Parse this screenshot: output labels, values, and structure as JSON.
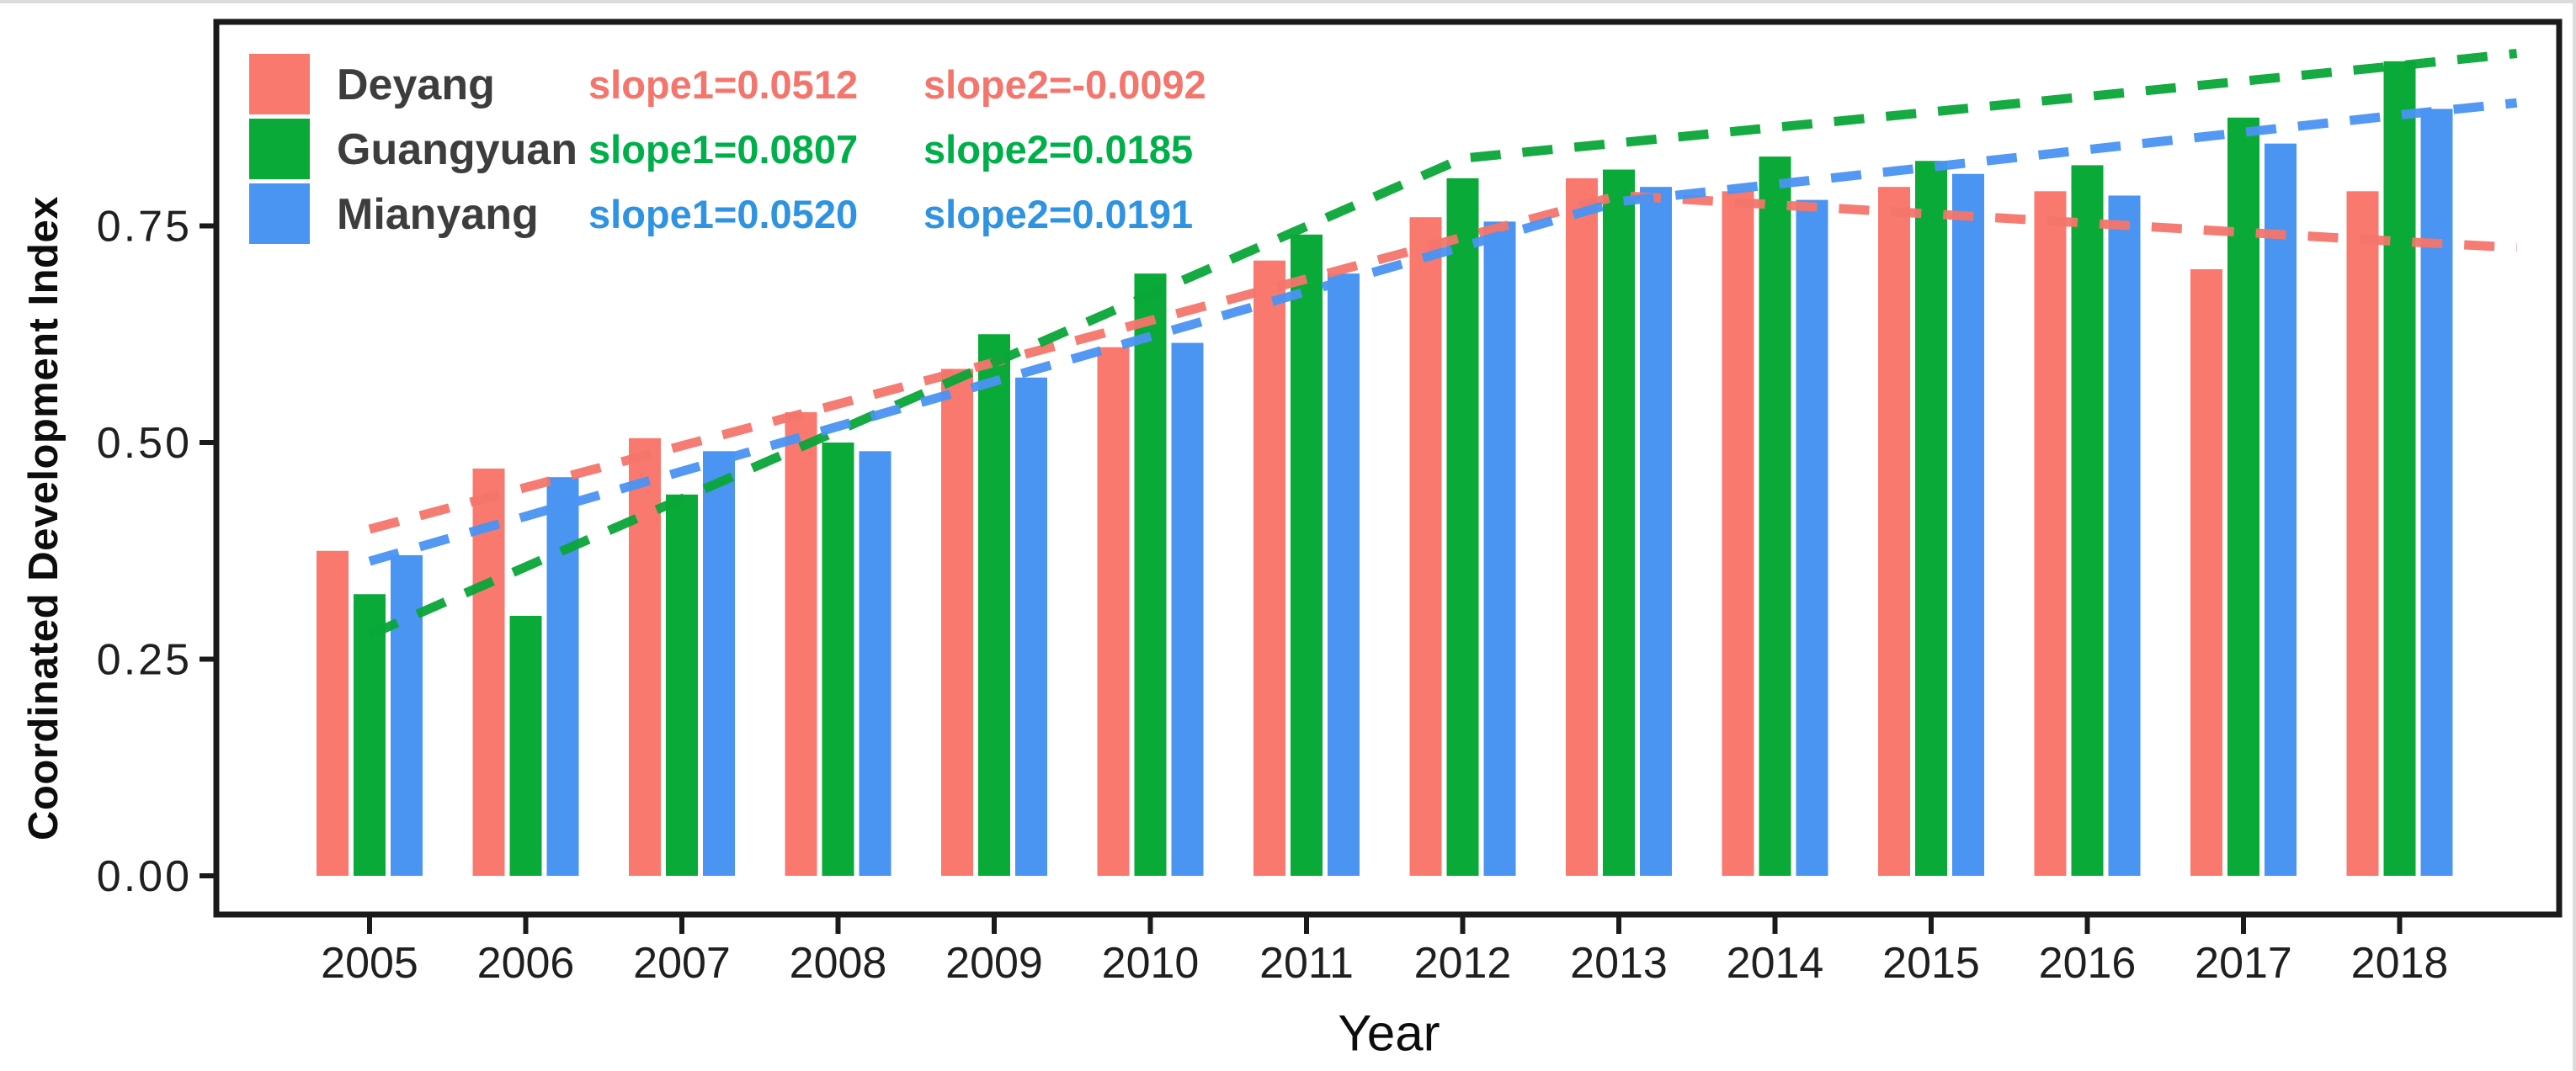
{
  "axes": {
    "y_title": "Coordinated Development Index",
    "x_title": "Year",
    "y_tick_labels": [
      "0.00",
      "0.25",
      "0.50",
      "0.75"
    ],
    "y_tick_values": [
      0,
      0.25,
      0.5,
      0.75
    ],
    "x_tick_labels": [
      "2005",
      "2006",
      "2007",
      "2008",
      "2009",
      "2010",
      "2011",
      "2012",
      "2013",
      "2014",
      "2015",
      "2016",
      "2017",
      "2018"
    ]
  },
  "legend": {
    "items": [
      {
        "label": "Deyang",
        "slope1": "slope1=0.0512",
        "slope2": "slope2=-0.0092",
        "swatch_color": "#F9796F",
        "text_color": "#F3756C"
      },
      {
        "label": "Guangyuan",
        "slope1": "slope1=0.0807",
        "slope2": "slope2=0.0185",
        "swatch_color": "#0AAA38",
        "text_color": "#00AF4A"
      },
      {
        "label": "Mianyang",
        "slope1": "slope1=0.0520",
        "slope2": "slope2=0.0191",
        "swatch_color": "#4A94F2",
        "text_color": "#2E93E0"
      }
    ]
  },
  "chart_data": {
    "type": "bar",
    "title": "",
    "xlabel": "Year",
    "ylabel": "Coordinated Development Index",
    "ylim": [
      0,
      1.0
    ],
    "yticks": [
      0,
      0.25,
      0.5,
      0.75
    ],
    "grid": false,
    "legend_position": "top-left",
    "categories": [
      2005,
      2006,
      2007,
      2008,
      2009,
      2010,
      2011,
      2012,
      2013,
      2014,
      2015,
      2016,
      2017,
      2018
    ],
    "series": [
      {
        "name": "Deyang",
        "color": "#F9796F",
        "values": [
          0.375,
          0.47,
          0.505,
          0.535,
          0.585,
          0.61,
          0.71,
          0.76,
          0.805,
          0.79,
          0.795,
          0.79,
          0.7,
          0.79
        ]
      },
      {
        "name": "Guangyuan",
        "color": "#0AAA38",
        "values": [
          0.325,
          0.3,
          0.44,
          0.5,
          0.625,
          0.695,
          0.74,
          0.805,
          0.815,
          0.83,
          0.825,
          0.82,
          0.875,
          0.94
        ]
      },
      {
        "name": "Mianyang",
        "color": "#4A94F2",
        "values": [
          0.37,
          0.46,
          0.49,
          0.49,
          0.575,
          0.615,
          0.695,
          0.755,
          0.795,
          0.78,
          0.81,
          0.785,
          0.845,
          0.885
        ]
      }
    ],
    "trend_lines": [
      {
        "name": "Deyang trend",
        "color": "#F3756C",
        "slope1": 0.0512,
        "slope2": -0.0092,
        "points": [
          [
            2005,
            0.4
          ],
          [
            2013,
            0.785
          ],
          [
            2018,
            0.732
          ],
          [
            2018.75,
            0.725
          ]
        ]
      },
      {
        "name": "Guangyuan trend",
        "color": "#09A538",
        "slope1": 0.0807,
        "slope2": 0.0185,
        "points": [
          [
            2005,
            0.278
          ],
          [
            2012,
            0.828
          ],
          [
            2018,
            0.935
          ],
          [
            2018.75,
            0.949
          ]
        ]
      },
      {
        "name": "Mianyang trend",
        "color": "#4A94F2",
        "slope1": 0.052,
        "slope2": 0.0191,
        "points": [
          [
            2005,
            0.363
          ],
          [
            2013,
            0.778
          ],
          [
            2018,
            0.878
          ],
          [
            2018.75,
            0.892
          ]
        ]
      }
    ]
  }
}
